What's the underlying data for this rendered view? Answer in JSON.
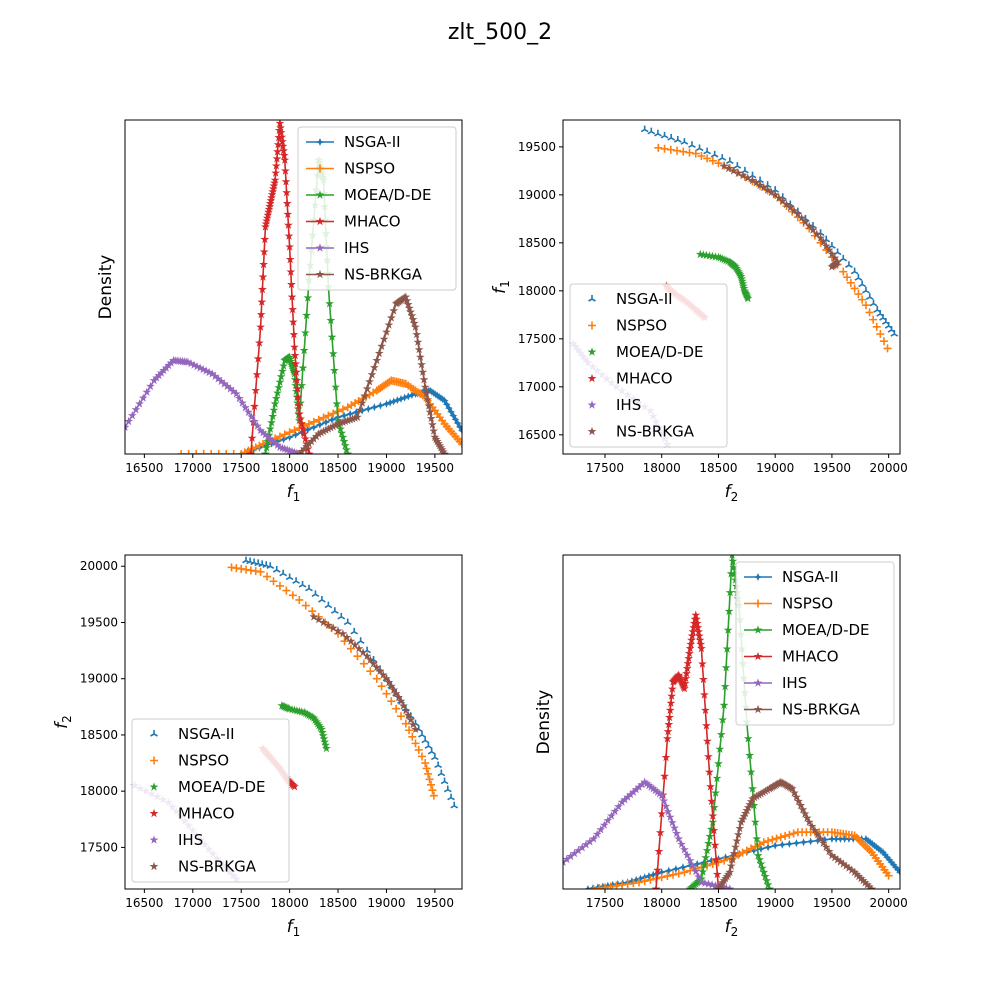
{
  "title": "zlt_500_2",
  "colors": {
    "NSGA-II": "#1f77b4",
    "NSPSO": "#ff7f0e",
    "MOEA/D-DE": "#2ca02c",
    "MHACO": "#d62728",
    "IHS": "#9467bd",
    "NS-BRKGA": "#8c564b"
  },
  "chart_data": [
    {
      "type": "line",
      "panel": "top-left",
      "xlabel": "f1",
      "ylabel": "Density",
      "xlim": [
        16300,
        19780
      ],
      "ylim": [
        0,
        1
      ],
      "xticks": [
        16500,
        17000,
        17500,
        18000,
        18500,
        19000,
        19500
      ],
      "yticks": [],
      "legend": "top-right",
      "series": [
        {
          "name": "NSGA-II",
          "x": [
            17500,
            18000,
            18500,
            19000,
            19300,
            19450,
            19600,
            19780
          ],
          "y": [
            0.0,
            0.05,
            0.11,
            0.15,
            0.18,
            0.19,
            0.16,
            0.07
          ]
        },
        {
          "name": "NSPSO",
          "x": [
            16880,
            17500,
            17800,
            18200,
            18600,
            18900,
            19050,
            19200,
            19400,
            19600,
            19780
          ],
          "y": [
            0.0,
            0.0,
            0.04,
            0.09,
            0.14,
            0.19,
            0.22,
            0.21,
            0.17,
            0.09,
            0.03
          ]
        },
        {
          "name": "MOEA/D-DE",
          "x": [
            17750,
            17850,
            17950,
            18000,
            18050,
            18100,
            18200,
            18300,
            18350,
            18400,
            18500,
            18600
          ],
          "y": [
            0.0,
            0.15,
            0.28,
            0.29,
            0.24,
            0.1,
            0.52,
            0.88,
            0.82,
            0.5,
            0.1,
            0.0
          ]
        },
        {
          "name": "MHACO",
          "x": [
            17600,
            17700,
            17750,
            17800,
            17850,
            17900,
            17950,
            18000,
            18050,
            18100,
            18200
          ],
          "y": [
            0.0,
            0.38,
            0.68,
            0.75,
            0.82,
            0.99,
            0.88,
            0.62,
            0.32,
            0.12,
            0.0
          ]
        },
        {
          "name": "IHS",
          "x": [
            16300,
            16600,
            16800,
            16950,
            17200,
            17450,
            17700,
            17900,
            18100
          ],
          "y": [
            0.08,
            0.22,
            0.28,
            0.275,
            0.24,
            0.18,
            0.07,
            0.02,
            0.0
          ]
        },
        {
          "name": "NS-BRKGA",
          "x": [
            18100,
            18300,
            18500,
            18700,
            18900,
            19100,
            19200,
            19300,
            19400,
            19500,
            19600
          ],
          "y": [
            0.0,
            0.06,
            0.09,
            0.11,
            0.28,
            0.45,
            0.47,
            0.38,
            0.2,
            0.05,
            0.0
          ]
        }
      ]
    },
    {
      "type": "scatter",
      "panel": "top-right",
      "xlabel": "f2",
      "ylabel": "f1",
      "xlim": [
        17130,
        20100
      ],
      "ylim": [
        16300,
        19780
      ],
      "xticks": [
        17500,
        18000,
        18500,
        19000,
        19500,
        20000
      ],
      "yticks": [
        16500,
        17000,
        17500,
        18000,
        18500,
        19000,
        19500
      ],
      "legend": "lower-left",
      "series": [
        {
          "name": "NSGA-II",
          "x": [
            17850,
            18200,
            18600,
            19000,
            19400,
            19700,
            19900,
            20050
          ],
          "y": [
            19680,
            19550,
            19350,
            19050,
            18600,
            18200,
            17800,
            17550
          ]
        },
        {
          "name": "NSPSO",
          "x": [
            17970,
            18300,
            18600,
            19000,
            19300,
            19600,
            19800,
            19990
          ],
          "y": [
            19490,
            19430,
            19280,
            19000,
            18650,
            18200,
            17850,
            17400
          ]
        },
        {
          "name": "MOEA/D-DE",
          "x": [
            18340,
            18500,
            18600,
            18650,
            18700,
            18730,
            18760
          ],
          "y": [
            18380,
            18350,
            18300,
            18250,
            18150,
            18000,
            17920
          ]
        },
        {
          "name": "MHACO",
          "x": [
            18040,
            18100,
            18200,
            18300,
            18380
          ],
          "y": [
            18050,
            17980,
            17900,
            17800,
            17720
          ]
        },
        {
          "name": "IHS",
          "x": [
            17220,
            17350,
            17600,
            17900,
            18050
          ],
          "y": [
            17450,
            17250,
            17000,
            16750,
            16400
          ]
        },
        {
          "name": "NS-BRKGA",
          "x": [
            18550,
            18800,
            19000,
            19200,
            19400,
            19550,
            19500
          ],
          "y": [
            19300,
            19150,
            19000,
            18800,
            18550,
            18300,
            18250
          ]
        }
      ]
    },
    {
      "type": "scatter",
      "panel": "bottom-left",
      "xlabel": "f1",
      "ylabel": "f2",
      "xlim": [
        16300,
        19780
      ],
      "ylim": [
        17130,
        20100
      ],
      "xticks": [
        16500,
        17000,
        17500,
        18000,
        18500,
        19000,
        19500
      ],
      "yticks": [
        17500,
        18000,
        18500,
        19000,
        19500,
        20000
      ],
      "legend": "lower-left",
      "series": [
        {
          "name": "NSGA-II",
          "x": [
            17550,
            17800,
            18200,
            18600,
            19000,
            19300,
            19500,
            19700
          ],
          "y": [
            20050,
            20000,
            19800,
            19500,
            19000,
            18600,
            18300,
            17870
          ]
        },
        {
          "name": "NSPSO",
          "x": [
            17400,
            17700,
            18100,
            18500,
            18900,
            19200,
            19400,
            19490
          ],
          "y": [
            19990,
            19950,
            19700,
            19400,
            19000,
            18600,
            18250,
            17960
          ]
        },
        {
          "name": "MOEA/D-DE",
          "x": [
            17920,
            18000,
            18150,
            18250,
            18330,
            18380
          ],
          "y": [
            18760,
            18730,
            18700,
            18650,
            18550,
            18380
          ]
        },
        {
          "name": "MHACO",
          "x": [
            17720,
            17800,
            17900,
            17980,
            18050
          ],
          "y": [
            18380,
            18300,
            18200,
            18100,
            18040
          ]
        },
        {
          "name": "IHS",
          "x": [
            16400,
            16750,
            17000,
            17250,
            17450
          ],
          "y": [
            18050,
            17900,
            17650,
            17400,
            17220
          ]
        },
        {
          "name": "NS-BRKGA",
          "x": [
            18250,
            18550,
            18800,
            19000,
            19150,
            19300
          ],
          "y": [
            19550,
            19400,
            19200,
            19000,
            18800,
            18550
          ]
        }
      ]
    },
    {
      "type": "line",
      "panel": "bottom-right",
      "xlabel": "f2",
      "ylabel": "Density",
      "xlim": [
        17130,
        20100
      ],
      "ylim": [
        0,
        1
      ],
      "xticks": [
        17500,
        18000,
        18500,
        19000,
        19500,
        20000
      ],
      "yticks": [],
      "legend": "top-right",
      "series": [
        {
          "name": "NSGA-II",
          "x": [
            17350,
            17700,
            18000,
            18500,
            19000,
            19500,
            19800,
            19950,
            20100
          ],
          "y": [
            0.0,
            0.02,
            0.05,
            0.09,
            0.13,
            0.15,
            0.15,
            0.11,
            0.05
          ]
        },
        {
          "name": "NSPSO",
          "x": [
            17400,
            17800,
            18200,
            18600,
            18900,
            19200,
            19500,
            19700,
            19850,
            20000
          ],
          "y": [
            0.0,
            0.02,
            0.05,
            0.09,
            0.14,
            0.17,
            0.17,
            0.16,
            0.11,
            0.04
          ]
        },
        {
          "name": "MOEA/D-DE",
          "x": [
            18250,
            18350,
            18450,
            18550,
            18620,
            18680,
            18750,
            18850,
            18950
          ],
          "y": [
            0.0,
            0.03,
            0.2,
            0.55,
            1.0,
            0.85,
            0.5,
            0.1,
            0.0
          ]
        },
        {
          "name": "MHACO",
          "x": [
            17950,
            18050,
            18100,
            18150,
            18200,
            18250,
            18300,
            18350,
            18420,
            18500
          ],
          "y": [
            0.0,
            0.45,
            0.62,
            0.64,
            0.6,
            0.72,
            0.82,
            0.72,
            0.35,
            0.0
          ]
        },
        {
          "name": "IHS",
          "x": [
            17130,
            17400,
            17650,
            17850,
            18000,
            18150,
            18350,
            18600
          ],
          "y": [
            0.08,
            0.15,
            0.26,
            0.32,
            0.28,
            0.15,
            0.02,
            0.0
          ]
        },
        {
          "name": "NS-BRKGA",
          "x": [
            18500,
            18600,
            18700,
            18800,
            18950,
            19050,
            19150,
            19300,
            19500,
            19700,
            19850
          ],
          "y": [
            0.0,
            0.05,
            0.2,
            0.27,
            0.3,
            0.32,
            0.3,
            0.2,
            0.1,
            0.05,
            0.0
          ]
        }
      ]
    }
  ]
}
